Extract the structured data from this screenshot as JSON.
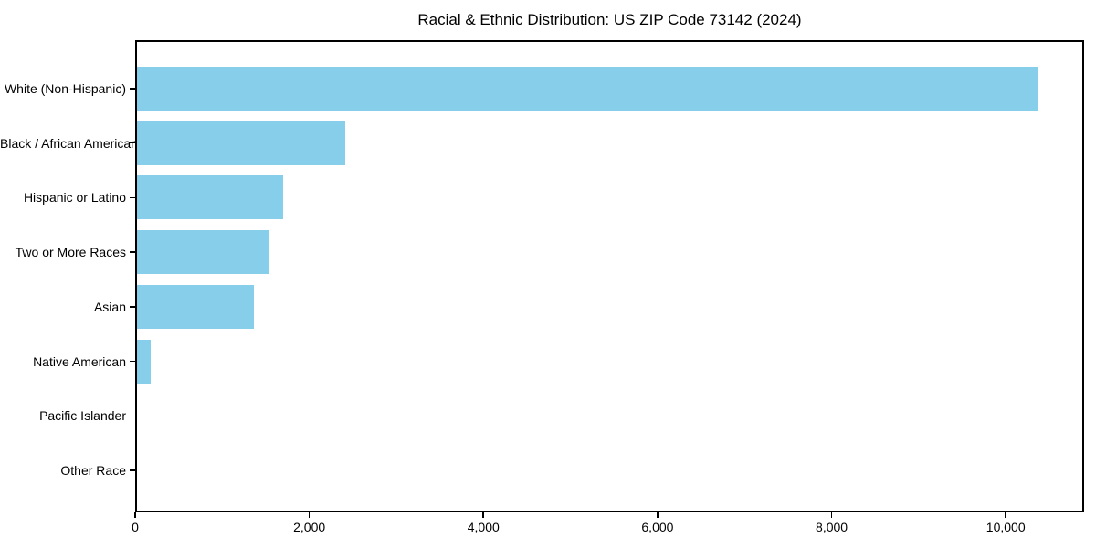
{
  "figure": {
    "background": "#ffffff",
    "text_color": "#000000",
    "axis_color": "#000000"
  },
  "chart_data": {
    "type": "bar",
    "orientation": "horizontal",
    "title": "Racial & Ethnic Distribution: US ZIP Code 73142 (2024)",
    "xlabel": "",
    "ylabel": "",
    "categories": [
      "White (Non-Hispanic)",
      "Black / African American",
      "Hispanic or Latino",
      "Two or More Races",
      "Asian",
      "Native American",
      "Pacific Islander",
      "Other Race"
    ],
    "values": [
      10370,
      2415,
      1700,
      1530,
      1360,
      175,
      0,
      0
    ],
    "xlim": [
      0,
      10900
    ],
    "xticks": {
      "values": [
        0,
        2000,
        4000,
        6000,
        8000,
        10000
      ],
      "labels": [
        "0",
        "2,000",
        "4,000",
        "6,000",
        "8,000",
        "10,000"
      ]
    },
    "grid": false,
    "legend": null,
    "bar_color": "#87CEEB"
  }
}
